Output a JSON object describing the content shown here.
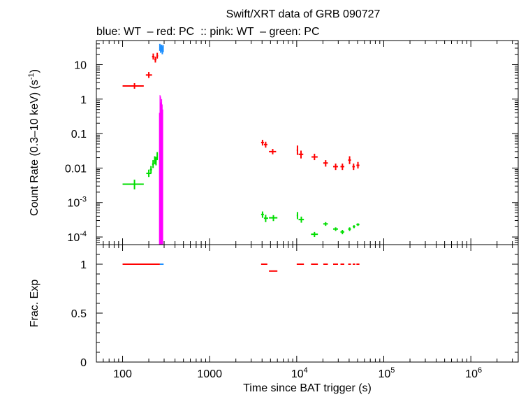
{
  "chart_data": {
    "type": "scatter",
    "title": "Swift/XRT data of GRB 090727",
    "subtitle": "blue: WT  – red: PC  :: pink: WT  – green: PC",
    "xlabel": "Time since BAT trigger (s)",
    "x_scale": "log",
    "xlim": [
      50,
      3500000
    ],
    "x_ticks": [
      {
        "value": 100,
        "label": "100"
      },
      {
        "value": 1000,
        "label": "1000"
      },
      {
        "value": 10000,
        "base": "10",
        "exp": "4"
      },
      {
        "value": 100000,
        "base": "10",
        "exp": "5"
      },
      {
        "value": 1000000,
        "base": "10",
        "exp": "6"
      }
    ],
    "panels": [
      {
        "id": "count-rate",
        "ylabel": "Count Rate (0.3–10 keV) (s",
        "ylabel_sup": "-1",
        "ylabel_tail": ")",
        "y_scale": "log",
        "ylim": [
          6e-05,
          50
        ],
        "y_ticks": [
          {
            "value": 10,
            "label": "10"
          },
          {
            "value": 1,
            "label": "1"
          },
          {
            "value": 0.1,
            "label": "0.1"
          },
          {
            "value": 0.01,
            "label": "0.01"
          },
          {
            "value": 0.001,
            "base": "10",
            "exp": "-3"
          },
          {
            "value": 0.0001,
            "base": "10",
            "exp": "-4"
          }
        ],
        "series": [
          {
            "color": "#ff0000",
            "points": [
              {
                "x": 137,
                "xlo": 100,
                "xhi": 175,
                "y": 2.4,
                "ylo": 2.0,
                "yhi": 2.9
              },
              {
                "x": 200,
                "xlo": 185,
                "xhi": 218,
                "y": 5.0,
                "ylo": 4.1,
                "yhi": 6.1
              },
              {
                "x": 225,
                "xlo": 218,
                "xhi": 232,
                "y": 17,
                "ylo": 14,
                "yhi": 21
              },
              {
                "x": 238,
                "xlo": 232,
                "xhi": 245,
                "y": 14,
                "ylo": 11.5,
                "yhi": 17
              },
              {
                "x": 250,
                "xlo": 245,
                "xhi": 256,
                "y": 18,
                "ylo": 15,
                "yhi": 22
              },
              {
                "x": 4050,
                "xlo": 3900,
                "xhi": 4200,
                "y": 0.055,
                "ylo": 0.045,
                "yhi": 0.066
              },
              {
                "x": 4400,
                "xlo": 4200,
                "xhi": 4600,
                "y": 0.048,
                "ylo": 0.039,
                "yhi": 0.058
              },
              {
                "x": 5300,
                "xlo": 4800,
                "xhi": 5800,
                "y": 0.03,
                "ylo": 0.025,
                "yhi": 0.036
              },
              {
                "x": 10200,
                "xlo": 10000,
                "xhi": 10400,
                "y": 0.033,
                "ylo": 0.024,
                "yhi": 0.045
              },
              {
                "x": 11200,
                "xlo": 10500,
                "xhi": 11900,
                "y": 0.025,
                "ylo": 0.019,
                "yhi": 0.032
              },
              {
                "x": 16000,
                "xlo": 14800,
                "xhi": 17400,
                "y": 0.021,
                "ylo": 0.017,
                "yhi": 0.026
              },
              {
                "x": 21500,
                "xlo": 20200,
                "xhi": 22800,
                "y": 0.014,
                "ylo": 0.011,
                "yhi": 0.017
              },
              {
                "x": 28000,
                "xlo": 26200,
                "xhi": 29800,
                "y": 0.011,
                "ylo": 0.0088,
                "yhi": 0.0135
              },
              {
                "x": 33500,
                "xlo": 31800,
                "xhi": 35200,
                "y": 0.011,
                "ylo": 0.0088,
                "yhi": 0.0135
              },
              {
                "x": 40500,
                "xlo": 39000,
                "xhi": 42000,
                "y": 0.017,
                "ylo": 0.013,
                "yhi": 0.022
              },
              {
                "x": 45000,
                "xlo": 43500,
                "xhi": 46500,
                "y": 0.011,
                "ylo": 0.0088,
                "yhi": 0.0135
              },
              {
                "x": 50500,
                "xlo": 48500,
                "xhi": 52500,
                "y": 0.012,
                "ylo": 0.0097,
                "yhi": 0.015
              }
            ]
          },
          {
            "color": "#1e90ff",
            "points": [
              {
                "x": 268,
                "xlo": 265,
                "xhi": 271,
                "y": 32,
                "ylo": 25,
                "yhi": 40
              },
              {
                "x": 274,
                "xlo": 271,
                "xhi": 277,
                "y": 28,
                "ylo": 22,
                "yhi": 36
              },
              {
                "x": 280,
                "xlo": 277,
                "xhi": 283,
                "y": 30,
                "ylo": 24,
                "yhi": 38
              },
              {
                "x": 286,
                "xlo": 283,
                "xhi": 289,
                "y": 26,
                "ylo": 20,
                "yhi": 34
              },
              {
                "x": 292,
                "xlo": 289,
                "xhi": 295,
                "y": 29,
                "ylo": 23,
                "yhi": 37
              }
            ]
          },
          {
            "color": "#00dd00",
            "points": [
              {
                "x": 137,
                "xlo": 100,
                "xhi": 175,
                "y": 0.0034,
                "ylo": 0.0024,
                "yhi": 0.0046
              },
              {
                "x": 200,
                "xlo": 187,
                "xhi": 214,
                "y": 0.007,
                "ylo": 0.0055,
                "yhi": 0.009
              },
              {
                "x": 212,
                "xlo": 206,
                "xhi": 218,
                "y": 0.009,
                "ylo": 0.007,
                "yhi": 0.0115
              },
              {
                "x": 224,
                "xlo": 218,
                "xhi": 230,
                "y": 0.013,
                "ylo": 0.01,
                "yhi": 0.017
              },
              {
                "x": 234,
                "xlo": 230,
                "xhi": 238,
                "y": 0.017,
                "ylo": 0.013,
                "yhi": 0.022
              },
              {
                "x": 242,
                "xlo": 238,
                "xhi": 246,
                "y": 0.016,
                "ylo": 0.012,
                "yhi": 0.021
              },
              {
                "x": 250,
                "xlo": 246,
                "xhi": 254,
                "y": 0.022,
                "ylo": 0.017,
                "yhi": 0.029
              },
              {
                "x": 4050,
                "xlo": 3900,
                "xhi": 4200,
                "y": 0.00045,
                "ylo": 0.00036,
                "yhi": 0.00055
              },
              {
                "x": 4400,
                "xlo": 4200,
                "xhi": 4700,
                "y": 0.00035,
                "ylo": 0.00027,
                "yhi": 0.00044
              },
              {
                "x": 5400,
                "xlo": 4800,
                "xhi": 6000,
                "y": 0.00036,
                "ylo": 0.00029,
                "yhi": 0.00043
              },
              {
                "x": 10200,
                "xlo": 10000,
                "xhi": 10400,
                "y": 0.00042,
                "ylo": 0.00033,
                "yhi": 0.00053
              },
              {
                "x": 11300,
                "xlo": 10500,
                "xhi": 12100,
                "y": 0.00032,
                "ylo": 0.00026,
                "yhi": 0.00039
              },
              {
                "x": 16000,
                "xlo": 14600,
                "xhi": 17500,
                "y": 0.00012,
                "ylo": 0.0001,
                "yhi": 0.00014
              },
              {
                "x": 21500,
                "xlo": 20200,
                "xhi": 22800,
                "y": 0.00024,
                "ylo": 0.00021,
                "yhi": 0.00027
              },
              {
                "x": 28000,
                "xlo": 26200,
                "xhi": 29800,
                "y": 0.00017,
                "ylo": 0.00015,
                "yhi": 0.00019
              },
              {
                "x": 33500,
                "xlo": 31800,
                "xhi": 35200,
                "y": 0.00014,
                "ylo": 0.00012,
                "yhi": 0.00016
              },
              {
                "x": 40500,
                "xlo": 39000,
                "xhi": 42000,
                "y": 0.00017,
                "ylo": 0.00015,
                "yhi": 0.00019
              },
              {
                "x": 45500,
                "xlo": 44000,
                "xhi": 47000,
                "y": 0.0002,
                "ylo": 0.00018,
                "yhi": 0.00022
              },
              {
                "x": 50500,
                "xlo": 48500,
                "xhi": 52500,
                "y": 0.00023,
                "ylo": 0.00021,
                "yhi": 0.00025
              }
            ]
          },
          {
            "color": "#ff00ff",
            "shape": "filled-band",
            "band": [
              {
                "x": 262,
                "y": 0.4
              },
              {
                "x": 266,
                "y": 1.3
              },
              {
                "x": 270,
                "y": 1.2
              },
              {
                "x": 274,
                "y": 0.8
              },
              {
                "x": 278,
                "y": 1.0
              },
              {
                "x": 282,
                "y": 0.7
              },
              {
                "x": 286,
                "y": 0.5
              }
            ]
          }
        ]
      },
      {
        "id": "frac-exp",
        "ylabel": "Frac. Exp",
        "y_scale": "linear",
        "ylim": [
          0,
          1.2
        ],
        "y_ticks": [
          {
            "value": 0,
            "label": "0"
          },
          {
            "value": 0.5,
            "label": "0.5"
          },
          {
            "value": 1,
            "label": "1"
          }
        ],
        "series": [
          {
            "color": "#ff0000",
            "segments": [
              {
                "xlo": 100,
                "xhi": 268,
                "y": 1.0
              },
              {
                "xlo": 3900,
                "xhi": 4600,
                "y": 1.0
              },
              {
                "xlo": 4800,
                "xhi": 6000,
                "y": 0.93
              },
              {
                "xlo": 10000,
                "xhi": 12100,
                "y": 1.0
              },
              {
                "xlo": 14600,
                "xhi": 17500,
                "y": 1.0
              },
              {
                "xlo": 20200,
                "xhi": 22800,
                "y": 1.0
              },
              {
                "xlo": 26200,
                "xhi": 29800,
                "y": 1.0
              },
              {
                "xlo": 31800,
                "xhi": 35200,
                "y": 1.0
              },
              {
                "xlo": 39000,
                "xhi": 42000,
                "y": 1.0
              },
              {
                "xlo": 44000,
                "xhi": 47000,
                "y": 1.0
              },
              {
                "xlo": 48500,
                "xhi": 52500,
                "y": 1.0
              }
            ]
          },
          {
            "color": "#1e90ff",
            "segments": [
              {
                "xlo": 268,
                "xhi": 296,
                "y": 1.0
              }
            ]
          }
        ]
      }
    ]
  }
}
